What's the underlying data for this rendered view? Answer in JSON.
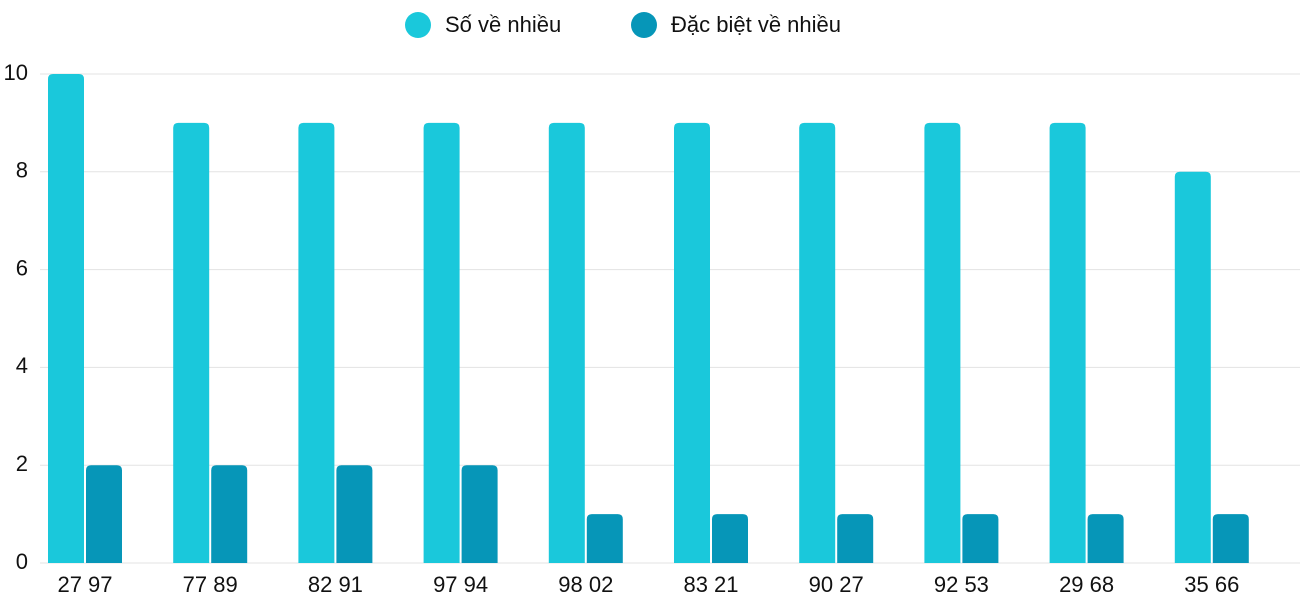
{
  "chart_data": {
    "type": "grouped-bar",
    "categories": [
      "27 97",
      "77 89",
      "82 91",
      "97 94",
      "98 02",
      "83 21",
      "90 27",
      "92 53",
      "29 68",
      "35 66"
    ],
    "series": [
      {
        "name": "Số về nhiều",
        "color": "#1ac8db",
        "values": [
          10,
          9,
          9,
          9,
          9,
          9,
          9,
          9,
          9,
          8
        ]
      },
      {
        "name": "Đặc biệt về nhiều",
        "color": "#0696b8",
        "values": [
          2,
          2,
          2,
          2,
          1,
          1,
          1,
          1,
          1,
          1
        ]
      }
    ],
    "ylim": [
      0,
      10
    ],
    "yticks": [
      0,
      2,
      4,
      6,
      8,
      10
    ],
    "grid": true,
    "legend": "top"
  }
}
